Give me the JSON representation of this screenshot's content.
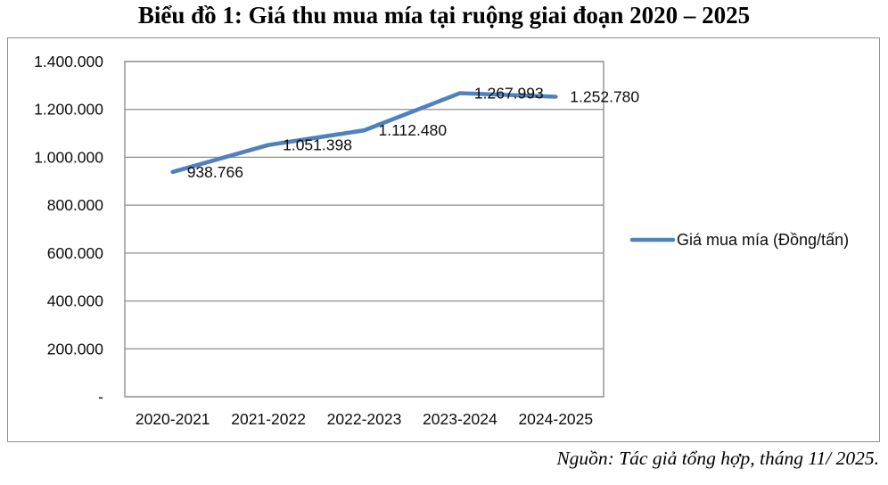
{
  "chart_data": {
    "type": "line",
    "title": "Biểu đồ 1: Giá thu mua mía tại ruộng giai đoạn 2020 – 2025",
    "categories": [
      "2020-2021",
      "2021-2022",
      "2022-2023",
      "2023-2024",
      "2024-2025"
    ],
    "series": [
      {
        "name": "Giá mua mía (Đồng/tấn)",
        "color": "#4F81BD",
        "values": [
          938766,
          1051398,
          1112480,
          1267993,
          1252780
        ],
        "labels": [
          "938.766",
          "1.051.398",
          "1.112.480",
          "1.267.993",
          "1.252.780"
        ]
      }
    ],
    "xlabel": "",
    "ylabel": "",
    "ylim": [
      0,
      1400000
    ],
    "y_ticks": [
      {
        "value": 1400000,
        "label": "1.400.000"
      },
      {
        "value": 1200000,
        "label": "1.200.000"
      },
      {
        "value": 1000000,
        "label": "1.000.000"
      },
      {
        "value": 800000,
        "label": "800.000"
      },
      {
        "value": 600000,
        "label": "600.000"
      },
      {
        "value": 400000,
        "label": "400.000"
      },
      {
        "value": 200000,
        "label": "200.000"
      },
      {
        "value": 0,
        "label": "-"
      }
    ],
    "grid": "horizontal",
    "legend_position": "right"
  },
  "source_note": "Nguồn: Tác giả tổng hợp, tháng 11/ 2025."
}
